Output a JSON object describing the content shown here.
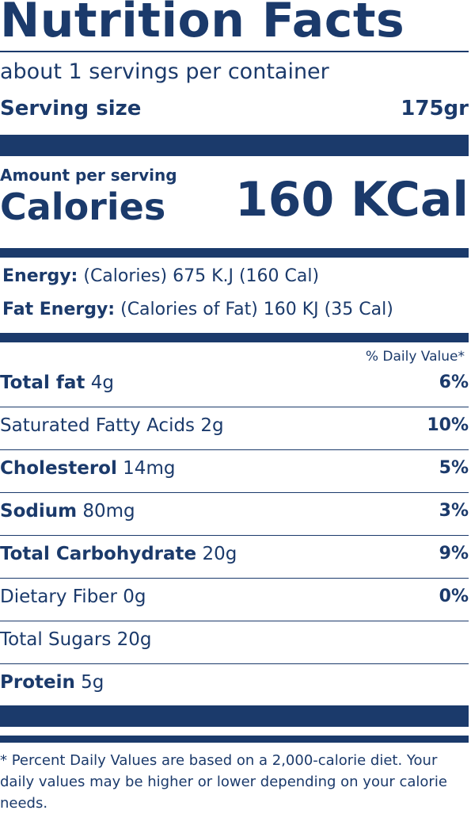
{
  "title": "Nutrition Facts",
  "servings": "about 1 servings per container",
  "serving_size": {
    "label": "Serving size",
    "value": "175gr"
  },
  "amount_label": "Amount per serving",
  "calories": {
    "label": "Calories",
    "value": "160 KCal"
  },
  "energy": [
    {
      "label": "Energy:",
      "text": "(Calories) 675 K.J (160 Cal)"
    },
    {
      "label": "Fat Energy:",
      "text": "(Calories of Fat) 160 KJ (35 Cal)"
    }
  ],
  "daily_value_header": "% Daily Value*",
  "rows": [
    {
      "name": "Total fat",
      "amount": "4g",
      "dv": "6%",
      "bold": true
    },
    {
      "name": "Saturated Fatty Acids",
      "amount": "2g",
      "dv": "10%",
      "bold": false
    },
    {
      "name": "Cholesterol",
      "amount": "14mg",
      "dv": "5%",
      "bold": true
    },
    {
      "name": "Sodium",
      "amount": "80mg",
      "dv": "3%",
      "bold": true
    },
    {
      "name": "Total Carbohydrate",
      "amount": "20g",
      "dv": "9%",
      "bold": true
    },
    {
      "name": "Dietary Fiber",
      "amount": "0g",
      "dv": "0%",
      "bold": false
    },
    {
      "name": "Total Sugars",
      "amount": "20g",
      "bold": false
    },
    {
      "name": "Protein",
      "amount": "5g",
      "bold": true
    }
  ],
  "footnote": "* Percent Daily Values are based on a 2,000-calorie diet. Your daily values may be higher or lower depending on your calorie needs."
}
